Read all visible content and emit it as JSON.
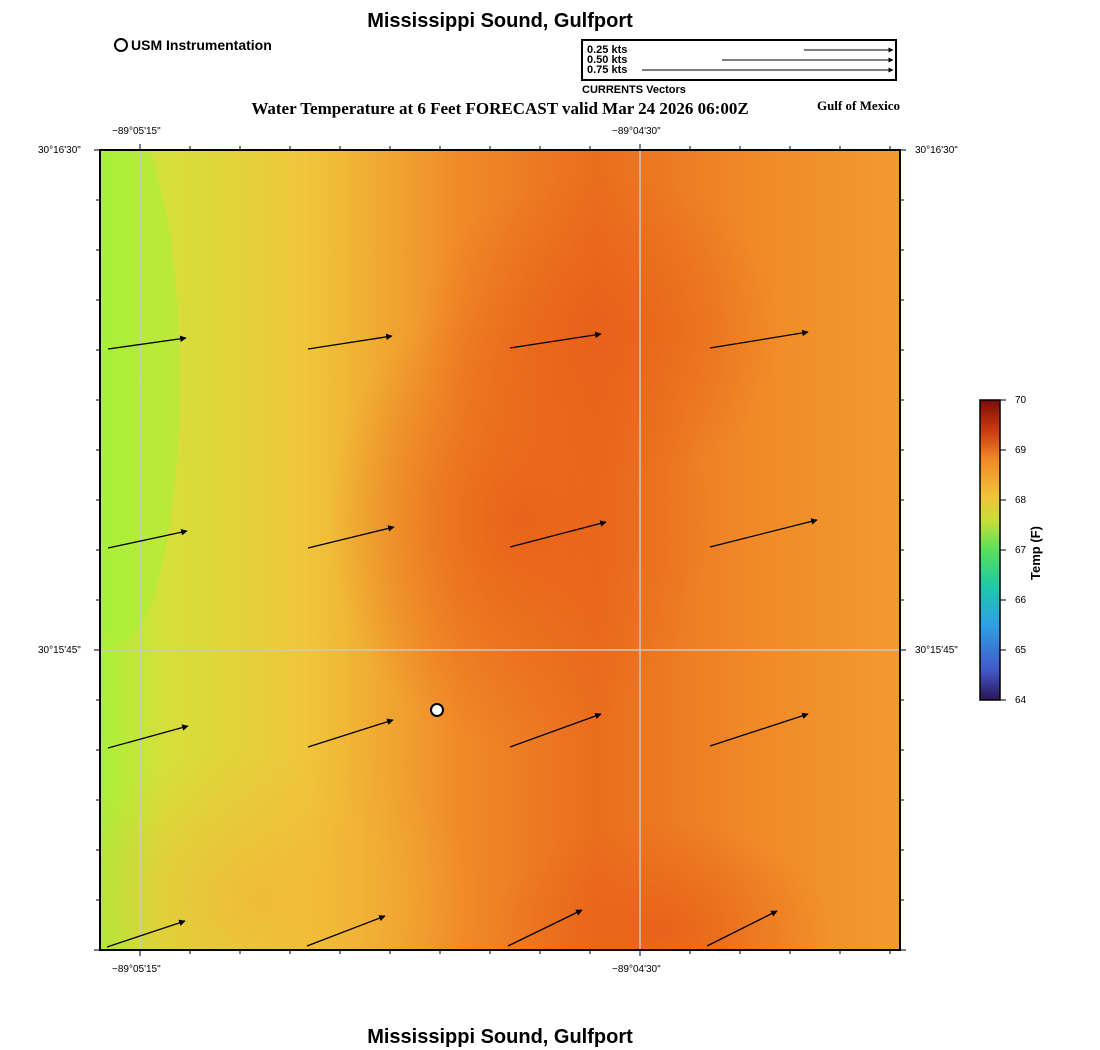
{
  "header": {
    "top_title": "Mississippi Sound, Gulfport",
    "bottom_title": "Mississippi Sound, Gulfport",
    "map_title": "Water Temperature at 6 Feet FORECAST valid Mar 24 2026 06:00Z",
    "region_label": "Gulf of Mexico"
  },
  "legend": {
    "station_label": "USM Instrumentation",
    "vectors_caption": "CURRENTS Vectors",
    "vector_scales": [
      {
        "label": "0.25 kts",
        "speed_kts": 0.25
      },
      {
        "label": "0.50 kts",
        "speed_kts": 0.5
      },
      {
        "label": "0.75 kts",
        "speed_kts": 0.75
      }
    ]
  },
  "map": {
    "x_ticks_top": [
      "−89°05'15\"",
      "−89°04'30\""
    ],
    "x_ticks_bottom": [
      "−89°05'15\"",
      "−89°04'30\""
    ],
    "y_ticks_left": [
      "30°16'30\"",
      "30°15'45\""
    ],
    "y_ticks_right": [
      "30°16'30\"",
      "30°15'45\""
    ],
    "colorbar": {
      "title": "Temp (F)",
      "min": 64,
      "max": 70,
      "ticks": [
        "70",
        "69",
        "68",
        "67",
        "66",
        "65",
        "64"
      ]
    },
    "colors": {
      "green": "#a8f03a",
      "yellow": "#f0c53a",
      "orange": "#f08a28",
      "deep_orange": "#e8641a"
    }
  }
}
